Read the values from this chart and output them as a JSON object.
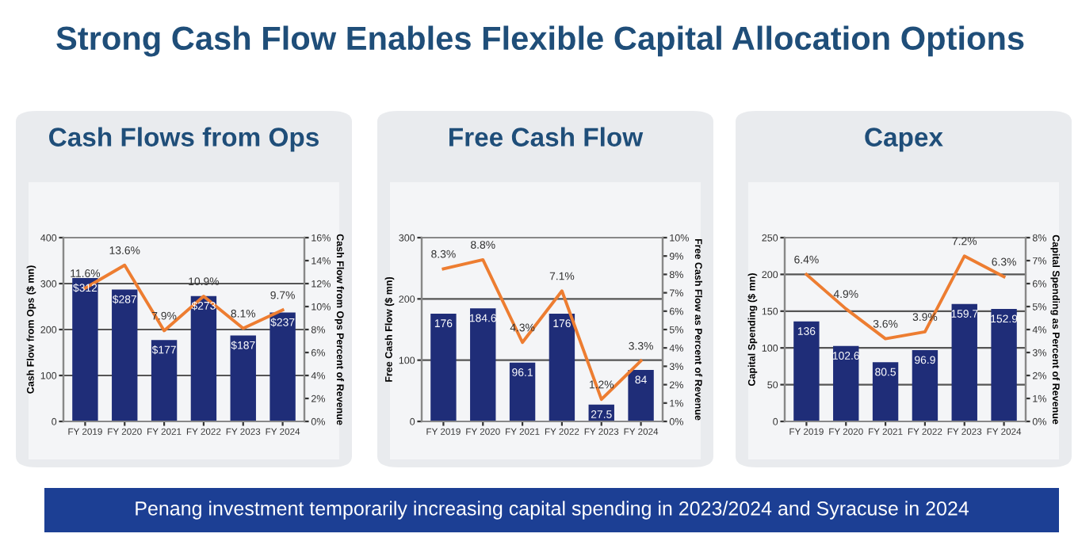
{
  "chart_data": [
    {
      "type": "bar",
      "title": "Cash Flows from Ops",
      "ylabel": "Cash Flow from Ops ($ mn)",
      "y2label": "Cash Flow from Ops Percent of Revenue",
      "categories": [
        "FY 2019",
        "FY 2020",
        "FY 2021",
        "FY 2022",
        "FY 2023",
        "FY 2024"
      ],
      "series": [
        {
          "color": "#1f2d78",
          "values": [
            312,
            287,
            177,
            273,
            187,
            237
          ],
          "value_labels": [
            "$312",
            "$287",
            "$177",
            "$273",
            "$187",
            "$237"
          ]
        },
        {
          "type": "line",
          "axis": "y2",
          "color": "#ed7d31",
          "values": [
            11.6,
            13.6,
            7.9,
            10.9,
            8.1,
            9.7
          ],
          "value_labels": [
            "11.6%",
            "13.6%",
            "7.9%",
            "10.9%",
            "8.1%",
            "9.7%"
          ]
        }
      ],
      "ylim": [
        0,
        400
      ],
      "yticks": [
        0,
        100,
        200,
        300,
        400
      ],
      "y2lim": [
        0,
        16
      ],
      "y2ticks": [
        {
          "value": 0,
          "label": "0%"
        },
        {
          "value": 2,
          "label": "2%"
        },
        {
          "value": 4,
          "label": "4%"
        },
        {
          "value": 6,
          "label": "6%"
        },
        {
          "value": 8,
          "label": "8%"
        },
        {
          "value": 10,
          "label": "10%"
        },
        {
          "value": 12,
          "label": "12%"
        },
        {
          "value": 14,
          "label": "14%"
        },
        {
          "value": 16,
          "label": "16%"
        }
      ],
      "grid": "y",
      "marker": "none",
      "line_style": "solid",
      "annotations": [
        "Strong Cash Flow Enables Flexible Capital Allocation Options",
        "Penang investment temporarily increasing capital spending in 2023/2024 and Syracuse in 2024"
      ]
    },
    {
      "type": "bar",
      "title": "Free Cash Flow",
      "ylabel": "Free Cash Flow ($ mn)",
      "y2label": "Free Cash Flow as Percent of Revenue",
      "categories": [
        "FY 2019",
        "FY 2020",
        "FY 2021",
        "FY 2022",
        "FY 2023",
        "FY 2024"
      ],
      "series": [
        {
          "color": "#1f2d78",
          "values": [
            176,
            184.6,
            96.1,
            176,
            27.5,
            84
          ],
          "value_labels": [
            "176",
            "184.6",
            "96.1",
            "176",
            "27.5",
            "84"
          ]
        },
        {
          "type": "line",
          "axis": "y2",
          "color": "#ed7d31",
          "values": [
            8.3,
            8.8,
            4.3,
            7.1,
            1.2,
            3.3
          ],
          "value_labels": [
            "8.3%",
            "8.8%",
            "4.3%",
            "7.1%",
            "1.2%",
            "3.3%"
          ]
        }
      ],
      "ylim": [
        0,
        300
      ],
      "yticks": [
        0,
        100,
        200,
        300
      ],
      "y2lim": [
        0,
        10
      ],
      "y2ticks": [
        {
          "value": 0,
          "label": "0%"
        },
        {
          "value": 1,
          "label": "1%"
        },
        {
          "value": 2,
          "label": "2%"
        },
        {
          "value": 3,
          "label": "3%"
        },
        {
          "value": 4,
          "label": "4%"
        },
        {
          "value": 5,
          "label": "5%"
        },
        {
          "value": 6,
          "label": "6%"
        },
        {
          "value": 7,
          "label": "7%"
        },
        {
          "value": 8,
          "label": "8%"
        },
        {
          "value": 9,
          "label": "9%"
        },
        {
          "value": 10,
          "label": "10%"
        }
      ],
      "grid": "y",
      "marker": "none",
      "line_style": "solid"
    },
    {
      "type": "bar",
      "title": "Capex",
      "ylabel": "Capital Spending ($ mn)",
      "y2label": "Capital Spending as Percent of Revenue",
      "categories": [
        "FY 2019",
        "FY 2020",
        "FY 2021",
        "FY 2022",
        "FY 2023",
        "FY 2024"
      ],
      "series": [
        {
          "color": "#1f2d78",
          "values": [
            136,
            102.6,
            80.5,
            96.9,
            159.7,
            152.9
          ],
          "value_labels": [
            "136",
            "102.6",
            "80.5",
            "96.9",
            "159.7",
            "152.9"
          ]
        },
        {
          "type": "line",
          "axis": "y2",
          "color": "#ed7d31",
          "values": [
            6.4,
            4.9,
            3.6,
            3.9,
            7.2,
            6.3
          ],
          "value_labels": [
            "6.4%",
            "4.9%",
            "3.6%",
            "3.9%",
            "7.2%",
            "6.3%"
          ]
        }
      ],
      "ylim": [
        0,
        250
      ],
      "yticks": [
        0,
        50,
        100,
        150,
        200,
        250
      ],
      "y2lim": [
        0,
        8
      ],
      "y2ticks": [
        {
          "value": 0,
          "label": "0%"
        },
        {
          "value": 1,
          "label": "1%"
        },
        {
          "value": 2,
          "label": "2%"
        },
        {
          "value": 3,
          "label": "3%"
        },
        {
          "value": 4,
          "label": "4%"
        },
        {
          "value": 5,
          "label": "5%"
        },
        {
          "value": 6,
          "label": "6%"
        },
        {
          "value": 7,
          "label": "7%"
        },
        {
          "value": 8,
          "label": "8%"
        }
      ],
      "grid": "y",
      "marker": "none",
      "line_style": "solid"
    }
  ]
}
